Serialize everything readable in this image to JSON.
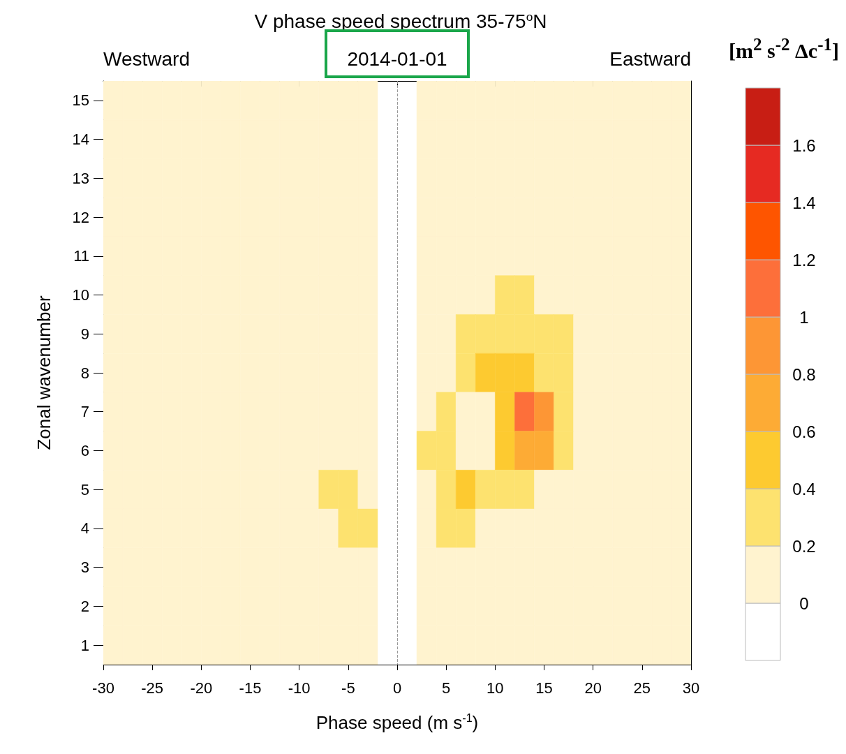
{
  "chart_data": {
    "type": "heatmap",
    "title": "V phase speed spectrum 35-75$^{o}$N",
    "xlabel": "Phase speed (m s$^{-1}$)",
    "ylabel": "Zonal wavenumber",
    "clabel": "[m$^{2}$ s$^{-2}$ Δc$^{-1}$]",
    "annotations": [
      "Westward",
      "2014-01-01",
      "Eastward"
    ],
    "x": [
      -29,
      -27,
      -25,
      -23,
      -21,
      -19,
      -17,
      -15,
      -13,
      -11,
      -9,
      -7,
      -5,
      -3,
      -1,
      1,
      3,
      5,
      7,
      9,
      11,
      13,
      15,
      17,
      19,
      21,
      23,
      25,
      27,
      29
    ],
    "y_categories": [
      15,
      14,
      13,
      12,
      11,
      10,
      9,
      8,
      7,
      6,
      5,
      4,
      3,
      2,
      1
    ],
    "cells": [
      [
        0.1,
        0.1,
        0.1,
        0.1,
        0.1,
        0.1,
        0.1,
        0.1,
        0.1,
        0.1,
        0.1,
        0.1,
        0.1,
        0.1,
        null,
        null,
        0.1,
        0.1,
        0.1,
        0.1,
        0.1,
        0.1,
        0.1,
        0.1,
        0.1,
        0.1,
        0.1,
        0.1,
        0.1,
        0.1
      ],
      [
        0.1,
        0.1,
        0.1,
        0.1,
        0.1,
        0.1,
        0.1,
        0.1,
        0.1,
        0.1,
        0.1,
        0.1,
        0.1,
        0.1,
        null,
        null,
        0.1,
        0.1,
        0.1,
        0.1,
        0.1,
        0.1,
        0.1,
        0.1,
        0.1,
        0.1,
        0.1,
        0.1,
        0.1,
        0.1
      ],
      [
        0.1,
        0.1,
        0.1,
        0.1,
        0.1,
        0.1,
        0.1,
        0.1,
        0.1,
        0.1,
        0.1,
        0.1,
        0.1,
        0.1,
        null,
        null,
        0.1,
        0.1,
        0.1,
        0.1,
        0.1,
        0.1,
        0.1,
        0.1,
        0.1,
        0.1,
        0.1,
        0.1,
        0.1,
        0.1
      ],
      [
        0.1,
        0.1,
        0.1,
        0.1,
        0.1,
        0.1,
        0.1,
        0.1,
        0.1,
        0.1,
        0.1,
        0.1,
        0.1,
        0.1,
        null,
        null,
        0.1,
        0.1,
        0.1,
        0.1,
        0.1,
        0.1,
        0.1,
        0.1,
        0.1,
        0.1,
        0.1,
        0.1,
        0.1,
        0.1
      ],
      [
        0.1,
        0.1,
        0.1,
        0.1,
        0.1,
        0.1,
        0.1,
        0.1,
        0.1,
        0.1,
        0.1,
        0.1,
        0.1,
        0.1,
        null,
        null,
        0.1,
        0.1,
        0.1,
        0.1,
        0.1,
        0.1,
        0.1,
        0.1,
        0.1,
        0.1,
        0.1,
        0.1,
        0.1,
        0.1
      ],
      [
        0.1,
        0.1,
        0.1,
        0.1,
        0.1,
        0.1,
        0.1,
        0.1,
        0.1,
        0.1,
        0.1,
        0.1,
        0.1,
        0.1,
        null,
        null,
        0.1,
        0.1,
        0.1,
        0.1,
        0.3,
        0.3,
        0.1,
        0.1,
        0.1,
        0.1,
        0.1,
        0.1,
        0.1,
        0.1
      ],
      [
        0.1,
        0.1,
        0.1,
        0.1,
        0.1,
        0.1,
        0.1,
        0.1,
        0.1,
        0.1,
        0.1,
        0.1,
        0.1,
        0.1,
        null,
        null,
        0.1,
        0.1,
        0.3,
        0.3,
        0.3,
        0.3,
        0.3,
        0.3,
        0.1,
        0.1,
        0.1,
        0.1,
        0.1,
        0.1
      ],
      [
        0.1,
        0.1,
        0.1,
        0.1,
        0.1,
        0.1,
        0.1,
        0.1,
        0.1,
        0.1,
        0.1,
        0.1,
        0.1,
        0.1,
        null,
        null,
        0.1,
        0.1,
        0.3,
        0.5,
        0.5,
        0.5,
        0.3,
        0.3,
        0.1,
        0.1,
        0.1,
        0.1,
        0.1,
        0.1
      ],
      [
        0.1,
        0.1,
        0.1,
        0.1,
        0.1,
        0.1,
        0.1,
        0.1,
        0.1,
        0.1,
        0.1,
        0.1,
        0.1,
        0.1,
        null,
        null,
        0.1,
        0.3,
        0.1,
        0.1,
        0.5,
        1.1,
        0.9,
        0.3,
        0.1,
        0.1,
        0.1,
        0.1,
        0.1,
        0.1
      ],
      [
        0.1,
        0.1,
        0.1,
        0.1,
        0.1,
        0.1,
        0.1,
        0.1,
        0.1,
        0.1,
        0.1,
        0.1,
        0.1,
        0.1,
        null,
        null,
        0.3,
        0.3,
        0.1,
        0.1,
        0.5,
        0.7,
        0.7,
        0.3,
        0.1,
        0.1,
        0.1,
        0.1,
        0.1,
        0.1
      ],
      [
        0.1,
        0.1,
        0.1,
        0.1,
        0.1,
        0.1,
        0.1,
        0.1,
        0.1,
        0.1,
        0.1,
        0.3,
        0.3,
        0.1,
        null,
        null,
        0.1,
        0.3,
        0.5,
        0.3,
        0.3,
        0.3,
        0.1,
        0.1,
        0.1,
        0.1,
        0.1,
        0.1,
        0.1,
        0.1
      ],
      [
        0.1,
        0.1,
        0.1,
        0.1,
        0.1,
        0.1,
        0.1,
        0.1,
        0.1,
        0.1,
        0.1,
        0.1,
        0.3,
        0.3,
        null,
        null,
        0.1,
        0.3,
        0.3,
        0.1,
        0.1,
        0.1,
        0.1,
        0.1,
        0.1,
        0.1,
        0.1,
        0.1,
        0.1,
        0.1
      ],
      [
        0.1,
        0.1,
        0.1,
        0.1,
        0.1,
        0.1,
        0.1,
        0.1,
        0.1,
        0.1,
        0.1,
        0.1,
        0.1,
        0.1,
        null,
        null,
        0.1,
        0.1,
        0.1,
        0.1,
        0.1,
        0.1,
        0.1,
        0.1,
        0.1,
        0.1,
        0.1,
        0.1,
        0.1,
        0.1
      ],
      [
        0.1,
        0.1,
        0.1,
        0.1,
        0.1,
        0.1,
        0.1,
        0.1,
        0.1,
        0.1,
        0.1,
        0.1,
        0.1,
        0.1,
        null,
        null,
        0.1,
        0.1,
        0.1,
        0.1,
        0.1,
        0.1,
        0.1,
        0.1,
        0.1,
        0.1,
        0.1,
        0.1,
        0.1,
        0.1
      ],
      [
        0.1,
        0.1,
        0.1,
        0.1,
        0.1,
        0.1,
        0.1,
        0.1,
        0.1,
        0.1,
        0.1,
        0.1,
        0.1,
        0.1,
        null,
        null,
        0.1,
        0.1,
        0.1,
        0.1,
        0.1,
        0.1,
        0.1,
        0.1,
        0.1,
        0.1,
        0.1,
        0.1,
        0.1,
        0.1
      ]
    ],
    "colors": [
      "#ffffff",
      "#fff3cf",
      "#fde26f",
      "#fdca30",
      "#fdab35",
      "#fd9635",
      "#fd6f3a",
      "#fe5500",
      "#e62a22",
      "#c81e14"
    ],
    "clim": [
      -0.2,
      1.8
    ],
    "cticks": [
      0,
      0.2,
      0.4,
      0.6,
      0.8,
      1,
      1.2,
      1.4,
      1.6
    ],
    "xlim": [
      -30,
      30
    ],
    "xticks": [
      -30,
      -25,
      -20,
      -15,
      -10,
      -5,
      0,
      5,
      10,
      15,
      20,
      25,
      30
    ],
    "ref_lines": [
      {
        "axis": "x",
        "value": 0,
        "line_style": "dashed",
        "color": "#999999"
      }
    ],
    "grid": false
  }
}
